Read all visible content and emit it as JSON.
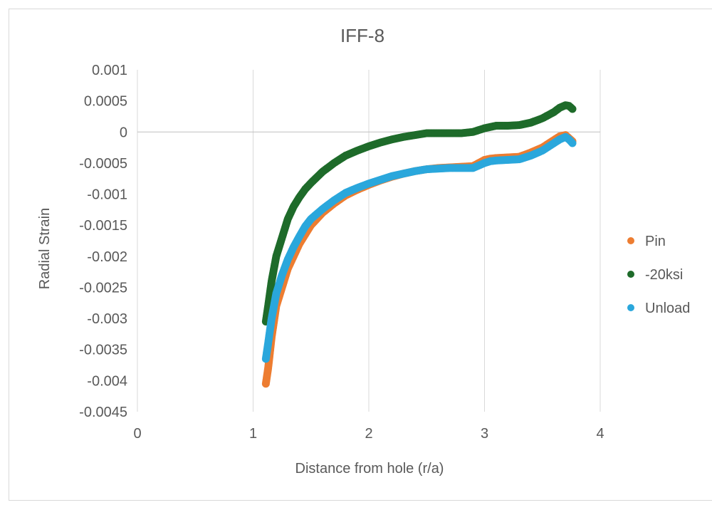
{
  "chart_data": {
    "type": "scatter",
    "title": "IFF-8",
    "xlabel": "Distance from hole (r/a)",
    "ylabel": "Radial Strain",
    "xlim": [
      0,
      4
    ],
    "ylim": [
      -0.0045,
      0.001
    ],
    "x_ticks": [
      "0",
      "1",
      "2",
      "3",
      "4"
    ],
    "y_ticks": [
      "0.001",
      "0.0005",
      "0",
      "-0.0005",
      "-0.001",
      "-0.0015",
      "-0.002",
      "-0.0025",
      "-0.003",
      "-0.0035",
      "-0.004",
      "-0.0045"
    ],
    "grid": "vertical",
    "legend_position": "right",
    "series": [
      {
        "name": "Pin",
        "color": "#ED7D31",
        "points": [
          [
            1.11,
            -0.00405
          ],
          [
            1.13,
            -0.0038
          ],
          [
            1.16,
            -0.0033
          ],
          [
            1.2,
            -0.0028
          ],
          [
            1.25,
            -0.0025
          ],
          [
            1.3,
            -0.0022
          ],
          [
            1.35,
            -0.002
          ],
          [
            1.4,
            -0.0018
          ],
          [
            1.45,
            -0.00165
          ],
          [
            1.5,
            -0.0015
          ],
          [
            1.6,
            -0.0013
          ],
          [
            1.7,
            -0.00115
          ],
          [
            1.8,
            -0.00102
          ],
          [
            1.9,
            -0.00093
          ],
          [
            2.0,
            -0.00085
          ],
          [
            2.1,
            -0.00078
          ],
          [
            2.2,
            -0.00072
          ],
          [
            2.3,
            -0.00067
          ],
          [
            2.4,
            -0.00063
          ],
          [
            2.5,
            -0.0006
          ],
          [
            2.6,
            -0.00058
          ],
          [
            2.7,
            -0.00057
          ],
          [
            2.8,
            -0.00056
          ],
          [
            2.9,
            -0.00055
          ],
          [
            2.95,
            -0.0005
          ],
          [
            3.0,
            -0.00045
          ],
          [
            3.05,
            -0.00043
          ],
          [
            3.1,
            -0.00042
          ],
          [
            3.2,
            -0.00041
          ],
          [
            3.3,
            -0.0004
          ],
          [
            3.4,
            -0.00033
          ],
          [
            3.5,
            -0.00025
          ],
          [
            3.6,
            -0.00013
          ],
          [
            3.65,
            -7e-05
          ],
          [
            3.7,
            -5e-05
          ],
          [
            3.73,
            -0.0001
          ],
          [
            3.76,
            -0.00015
          ]
        ]
      },
      {
        "name": "-20ksi",
        "color": "#1E6B2A",
        "points": [
          [
            1.11,
            -0.00305
          ],
          [
            1.13,
            -0.0028
          ],
          [
            1.16,
            -0.0024
          ],
          [
            1.2,
            -0.002
          ],
          [
            1.25,
            -0.0017
          ],
          [
            1.3,
            -0.0014
          ],
          [
            1.35,
            -0.0012
          ],
          [
            1.4,
            -0.00105
          ],
          [
            1.45,
            -0.00092
          ],
          [
            1.5,
            -0.00082
          ],
          [
            1.6,
            -0.00064
          ],
          [
            1.7,
            -0.0005
          ],
          [
            1.8,
            -0.00038
          ],
          [
            1.9,
            -0.0003
          ],
          [
            2.0,
            -0.00023
          ],
          [
            2.1,
            -0.00017
          ],
          [
            2.2,
            -0.00012
          ],
          [
            2.3,
            -8e-05
          ],
          [
            2.4,
            -5e-05
          ],
          [
            2.5,
            -2e-05
          ],
          [
            2.6,
            -2e-05
          ],
          [
            2.7,
            -2e-05
          ],
          [
            2.8,
            -2e-05
          ],
          [
            2.9,
            0.0
          ],
          [
            2.95,
            3e-05
          ],
          [
            3.0,
            6e-05
          ],
          [
            3.05,
            8e-05
          ],
          [
            3.1,
            0.0001
          ],
          [
            3.2,
            0.0001
          ],
          [
            3.3,
            0.00011
          ],
          [
            3.4,
            0.00015
          ],
          [
            3.5,
            0.00022
          ],
          [
            3.6,
            0.00032
          ],
          [
            3.65,
            0.00039
          ],
          [
            3.7,
            0.00043
          ],
          [
            3.73,
            0.00042
          ],
          [
            3.76,
            0.00037
          ]
        ]
      },
      {
        "name": "Unload",
        "color": "#2AA7DC",
        "points": [
          [
            1.11,
            -0.00365
          ],
          [
            1.13,
            -0.0034
          ],
          [
            1.16,
            -0.003
          ],
          [
            1.2,
            -0.0026
          ],
          [
            1.25,
            -0.0023
          ],
          [
            1.3,
            -0.00205
          ],
          [
            1.35,
            -0.00185
          ],
          [
            1.4,
            -0.00168
          ],
          [
            1.45,
            -0.00152
          ],
          [
            1.5,
            -0.0014
          ],
          [
            1.6,
            -0.00124
          ],
          [
            1.7,
            -0.0011
          ],
          [
            1.8,
            -0.00098
          ],
          [
            1.9,
            -0.0009
          ],
          [
            2.0,
            -0.00083
          ],
          [
            2.1,
            -0.00077
          ],
          [
            2.2,
            -0.00071
          ],
          [
            2.3,
            -0.00067
          ],
          [
            2.4,
            -0.00063
          ],
          [
            2.5,
            -0.0006
          ],
          [
            2.6,
            -0.00059
          ],
          [
            2.7,
            -0.00058
          ],
          [
            2.8,
            -0.00058
          ],
          [
            2.9,
            -0.00058
          ],
          [
            2.95,
            -0.00054
          ],
          [
            3.0,
            -0.0005
          ],
          [
            3.05,
            -0.00047
          ],
          [
            3.1,
            -0.00046
          ],
          [
            3.2,
            -0.00045
          ],
          [
            3.3,
            -0.00044
          ],
          [
            3.4,
            -0.00038
          ],
          [
            3.5,
            -0.0003
          ],
          [
            3.6,
            -0.00018
          ],
          [
            3.65,
            -0.00012
          ],
          [
            3.7,
            -8e-05
          ],
          [
            3.73,
            -0.00012
          ],
          [
            3.76,
            -0.00018
          ]
        ]
      }
    ]
  }
}
